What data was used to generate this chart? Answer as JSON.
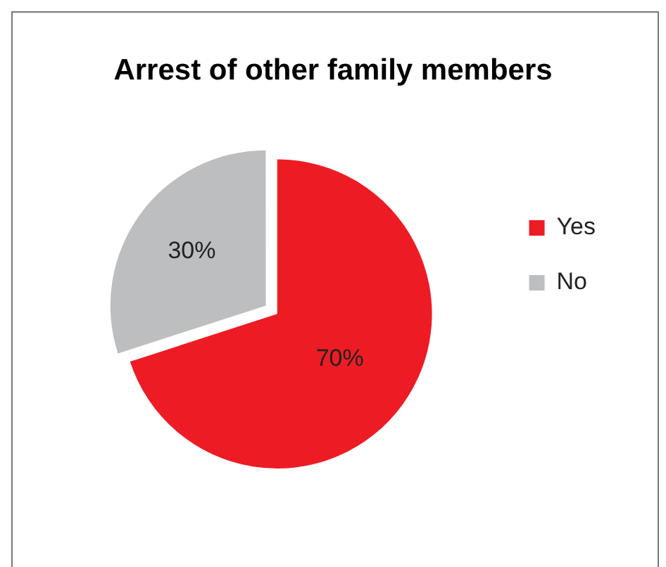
{
  "chart_data": {
    "type": "pie",
    "title": "Arrest of other family members",
    "categories": [
      "Yes",
      "No"
    ],
    "values": [
      70,
      30
    ],
    "colors": [
      "#ed1c24",
      "#bcbec0"
    ],
    "value_labels": [
      "70%",
      "30%"
    ],
    "legend": "right"
  }
}
